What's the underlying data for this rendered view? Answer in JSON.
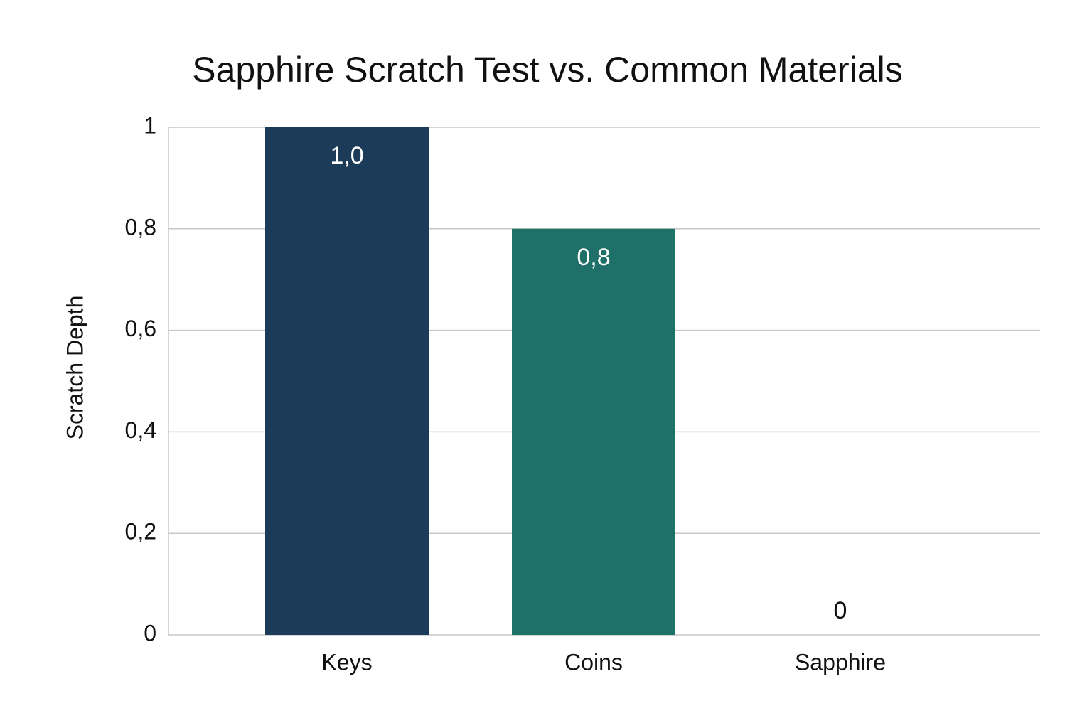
{
  "chart_data": {
    "type": "bar",
    "title": "Sapphire Scratch Test vs. Common Materials",
    "y_label": "Scratch Depth",
    "categories": [
      "Keys",
      "Coins",
      "Sapphire"
    ],
    "values": [
      1.0,
      0.8,
      0
    ],
    "value_labels": [
      "1,0",
      "0,8",
      "0"
    ],
    "colors": [
      "#1b3b58",
      "#1f7068",
      "#1f7068"
    ],
    "ylim": [
      0,
      1
    ],
    "yticks": [
      0,
      {
        "value": 0.2,
        "label": "0,2"
      },
      {
        "value": 0.4,
        "label": "0,4"
      },
      {
        "value": 0.6,
        "label": "0,6"
      },
      {
        "value": 0.8,
        "label": "0,8"
      },
      1
    ],
    "grid": true
  }
}
